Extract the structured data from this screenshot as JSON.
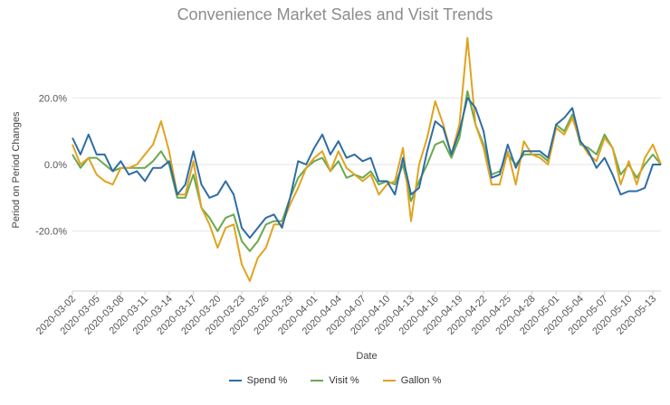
{
  "chart_data": {
    "type": "line",
    "title": "Convenience Market Sales and Visit Trends",
    "xlabel": "Date",
    "ylabel": "Period on Period Changes",
    "y_ticks": [
      "20.0%",
      "0.0%",
      "-20.0%"
    ],
    "y_tick_values": [
      20,
      0,
      -20
    ],
    "ylim": [
      -38,
      38
    ],
    "grid": "horizontal",
    "legend_position": "bottom",
    "x_tick_labels": [
      "2020-03-02",
      "2020-03-05",
      "2020-03-08",
      "2020-03-11",
      "2020-03-14",
      "2020-03-17",
      "2020-03-20",
      "2020-03-23",
      "2020-03-26",
      "2020-03-29",
      "2020-04-01",
      "2020-04-04",
      "2020-04-07",
      "2020-04-10",
      "2020-04-13",
      "2020-04-16",
      "2020-04-19",
      "2020-04-22",
      "2020-04-25",
      "2020-04-28",
      "2020-05-01",
      "2020-05-04",
      "2020-05-07",
      "2020-05-10",
      "2020-05-13"
    ],
    "series": [
      {
        "name": "Spend %",
        "color": "#2e6da4",
        "values": [
          8,
          3,
          9,
          3,
          3,
          -2,
          1,
          -3,
          -2,
          -5,
          -1,
          -1,
          1,
          -9,
          -6,
          4,
          -6,
          -10,
          -9,
          -5,
          -9,
          -19,
          -22,
          -19,
          -16,
          -15,
          -19,
          -10,
          1,
          0,
          5,
          9,
          3,
          7,
          2,
          3,
          1,
          2,
          -5,
          -5,
          -9,
          2,
          -9,
          -7,
          4,
          13,
          11,
          3,
          10,
          20,
          17,
          10,
          -4,
          -3,
          6,
          -1,
          4,
          4,
          4,
          2,
          12,
          14,
          17,
          7,
          4,
          -1,
          2,
          -3,
          -9,
          -8,
          -8,
          -7,
          0,
          0
        ]
      },
      {
        "name": "Visit %",
        "color": "#6aa84f",
        "values": [
          3,
          -1,
          2,
          2,
          0,
          -2,
          -1,
          -1,
          -1,
          -1,
          1,
          4,
          0,
          -10,
          -10,
          -3,
          -13,
          -16,
          -20,
          -16,
          -15,
          -23,
          -26,
          -23,
          -18,
          -17,
          -17,
          -10,
          -4,
          -1,
          1,
          2,
          -2,
          1,
          -4,
          -3,
          -4,
          -2,
          -6,
          -5,
          -6,
          0,
          -11,
          -5,
          0,
          6,
          7,
          2,
          8,
          22,
          12,
          6,
          -3,
          -2,
          3,
          0,
          3,
          3,
          3,
          1,
          12,
          10,
          15,
          6,
          5,
          3,
          9,
          5,
          -3,
          0,
          -4,
          0,
          3,
          0
        ]
      },
      {
        "name": "Gallon %",
        "color": "#e0a320",
        "values": [
          6,
          0,
          2,
          -3,
          -5,
          -6,
          -1,
          -1,
          0,
          3,
          6,
          13,
          4,
          -9,
          -9,
          1,
          -13,
          -18,
          -25,
          -19,
          -18,
          -30,
          -35,
          -28,
          -25,
          -18,
          -18,
          -12,
          -7,
          -1,
          2,
          4,
          -2,
          4,
          -1,
          -3,
          -5,
          -3,
          -9,
          -6,
          -5,
          5,
          -17,
          0,
          8,
          19,
          12,
          3,
          12,
          38,
          12,
          5,
          -6,
          -6,
          4,
          -6,
          7,
          3,
          2,
          0,
          11,
          9,
          14,
          7,
          3,
          1,
          8,
          5,
          -6,
          1,
          -6,
          2,
          6,
          0
        ]
      }
    ]
  }
}
